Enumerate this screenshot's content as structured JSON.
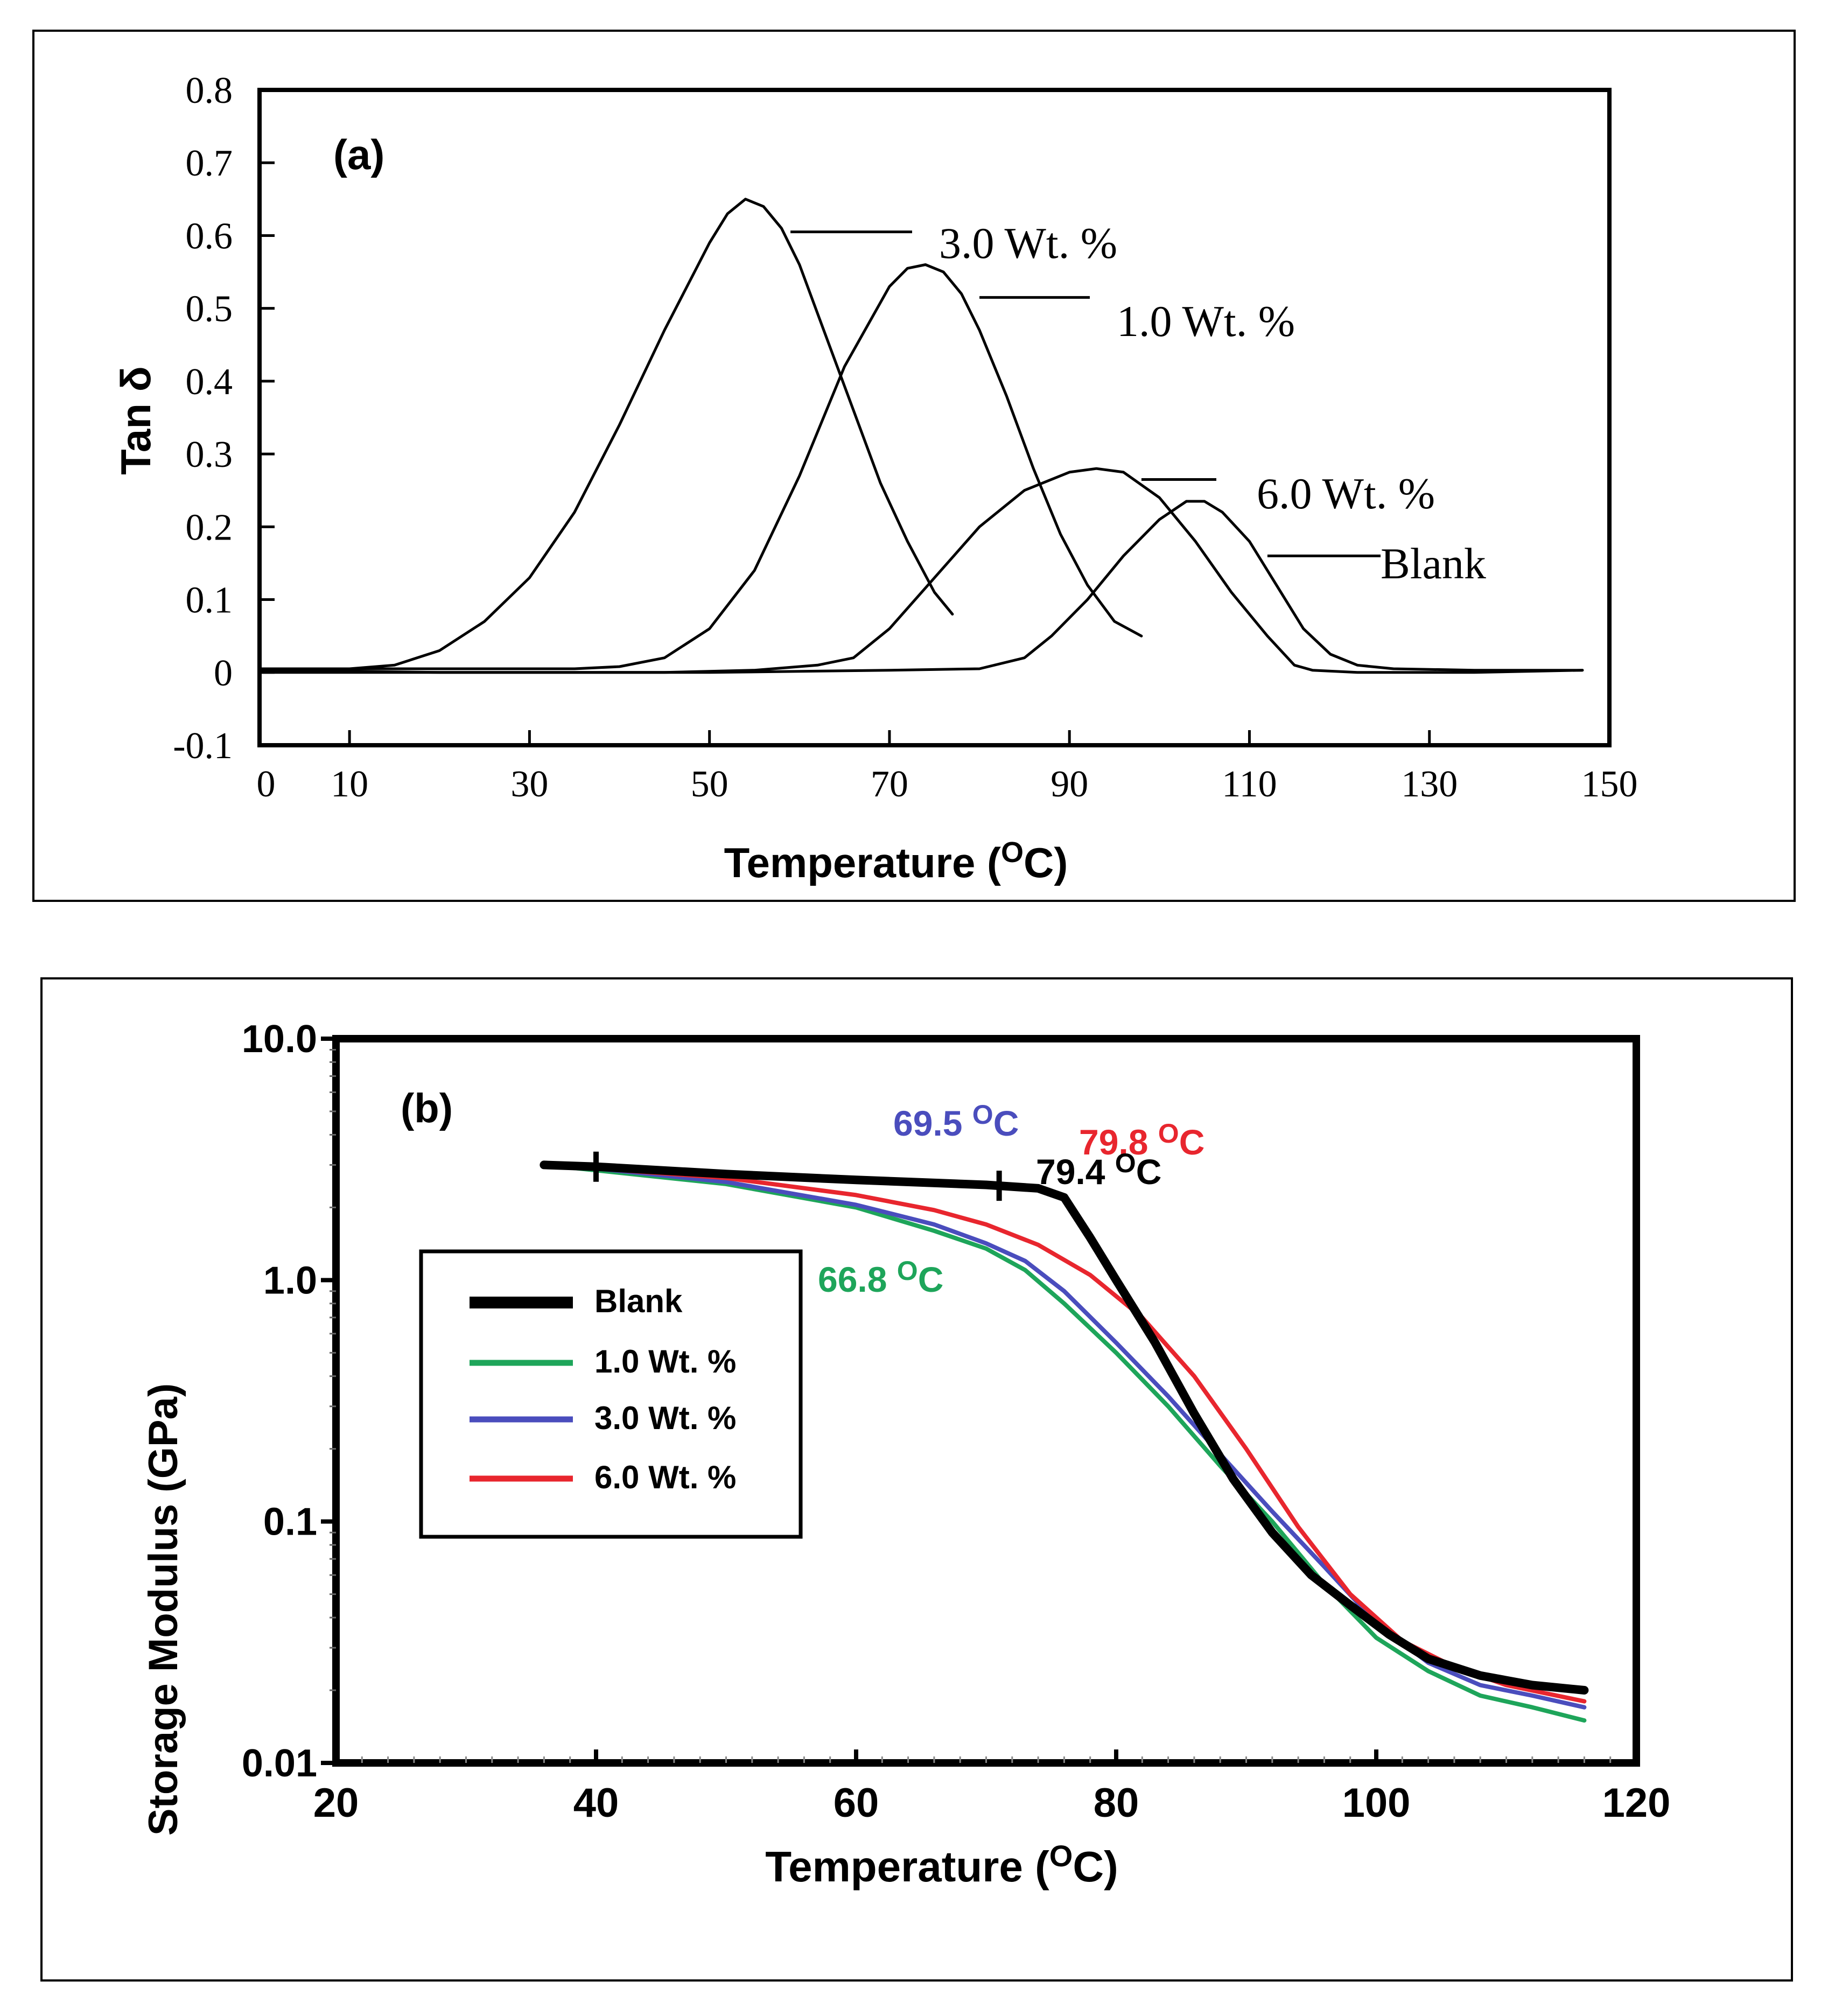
{
  "chart_data": [
    {
      "type": "line",
      "panel_label": "(a)",
      "title": "",
      "xlabel": "Temperature",
      "xunit": "C",
      "xunit_super": "O",
      "ylabel": "Tan δ",
      "xlim": [
        0,
        150
      ],
      "ylim": [
        -0.1,
        0.8
      ],
      "xticks": [
        0,
        10,
        30,
        50,
        70,
        90,
        110,
        130,
        150
      ],
      "xtick_labels": [
        "0",
        "10",
        "30",
        "50",
        "70",
        "90",
        "110",
        "130",
        "150"
      ],
      "yticks": [
        -0.1,
        0,
        0.1,
        0.2,
        0.3,
        0.4,
        0.5,
        0.6,
        0.7,
        0.8
      ],
      "ytick_labels": [
        "-0.1",
        "0",
        "0.1",
        "0.2",
        "0.3",
        "0.4",
        "0.5",
        "0.6",
        "0.7",
        "0.8"
      ],
      "grid": false,
      "series": [
        {
          "name": "3.0 Wt. %",
          "color": "#000000",
          "points": [
            [
              0,
              0.005
            ],
            [
              10,
              0.005
            ],
            [
              15,
              0.01
            ],
            [
              20,
              0.03
            ],
            [
              25,
              0.07
            ],
            [
              30,
              0.13
            ],
            [
              35,
              0.22
            ],
            [
              40,
              0.34
            ],
            [
              45,
              0.47
            ],
            [
              50,
              0.59
            ],
            [
              52,
              0.63
            ],
            [
              54,
              0.65
            ],
            [
              56,
              0.64
            ],
            [
              58,
              0.61
            ],
            [
              60,
              0.56
            ],
            [
              63,
              0.46
            ],
            [
              66,
              0.36
            ],
            [
              69,
              0.26
            ],
            [
              72,
              0.18
            ],
            [
              75,
              0.11
            ],
            [
              77,
              0.08
            ]
          ]
        },
        {
          "name": "1.0 Wt. %",
          "color": "#000000",
          "points": [
            [
              10,
              0.005
            ],
            [
              35,
              0.005
            ],
            [
              40,
              0.008
            ],
            [
              45,
              0.02
            ],
            [
              50,
              0.06
            ],
            [
              55,
              0.14
            ],
            [
              60,
              0.27
            ],
            [
              65,
              0.42
            ],
            [
              70,
              0.53
            ],
            [
              72,
              0.555
            ],
            [
              74,
              0.56
            ],
            [
              76,
              0.55
            ],
            [
              78,
              0.52
            ],
            [
              80,
              0.47
            ],
            [
              83,
              0.38
            ],
            [
              86,
              0.28
            ],
            [
              89,
              0.19
            ],
            [
              92,
              0.12
            ],
            [
              95,
              0.07
            ],
            [
              98,
              0.05
            ]
          ]
        },
        {
          "name": "6.0 Wt. %",
          "color": "#000000",
          "points": [
            [
              0,
              0.0
            ],
            [
              45,
              0.0
            ],
            [
              55,
              0.003
            ],
            [
              62,
              0.01
            ],
            [
              66,
              0.02
            ],
            [
              70,
              0.06
            ],
            [
              75,
              0.13
            ],
            [
              80,
              0.2
            ],
            [
              85,
              0.25
            ],
            [
              90,
              0.275
            ],
            [
              93,
              0.28
            ],
            [
              96,
              0.275
            ],
            [
              100,
              0.24
            ],
            [
              104,
              0.18
            ],
            [
              108,
              0.11
            ],
            [
              112,
              0.05
            ],
            [
              115,
              0.01
            ],
            [
              117,
              0.003
            ],
            [
              122,
              0.0
            ],
            [
              135,
              0.0
            ],
            [
              147,
              0.003
            ]
          ]
        },
        {
          "name": "Blank",
          "color": "#000000",
          "points": [
            [
              0,
              0.003
            ],
            [
              20,
              0.0
            ],
            [
              50,
              0.0
            ],
            [
              70,
              0.003
            ],
            [
              80,
              0.005
            ],
            [
              85,
              0.02
            ],
            [
              88,
              0.05
            ],
            [
              92,
              0.1
            ],
            [
              96,
              0.16
            ],
            [
              100,
              0.21
            ],
            [
              103,
              0.235
            ],
            [
              105,
              0.235
            ],
            [
              107,
              0.22
            ],
            [
              110,
              0.18
            ],
            [
              113,
              0.12
            ],
            [
              116,
              0.06
            ],
            [
              119,
              0.025
            ],
            [
              122,
              0.01
            ],
            [
              126,
              0.005
            ],
            [
              135,
              0.003
            ],
            [
              147,
              0.003
            ]
          ]
        }
      ],
      "annotations": [
        "3.0 Wt. %",
        "1.0 Wt. %",
        "6.0  Wt. %",
        "Blank"
      ]
    },
    {
      "type": "line",
      "panel_label": "(b)",
      "title": "",
      "xlabel": "Temperature",
      "xunit": "C",
      "xunit_super": "O",
      "ylabel": "Storage Modulus (GPa)",
      "yscale": "log",
      "xlim": [
        20,
        120
      ],
      "ylim": [
        0.01,
        10
      ],
      "xticks": [
        20,
        40,
        60,
        80,
        100,
        120
      ],
      "xtick_labels": [
        "20",
        "40",
        "60",
        "80",
        "100",
        "120"
      ],
      "yticks": [
        0.01,
        0.1,
        1,
        10
      ],
      "ytick_labels": [
        "0.01",
        "0.1",
        "1.0",
        "10.0"
      ],
      "grid": false,
      "legend": {
        "position": "center-left",
        "entries": [
          "Blank",
          "1.0 Wt. %",
          "3.0 Wt. %",
          "6.0 Wt. %"
        ]
      },
      "series": [
        {
          "name": "Blank",
          "color": "#000000",
          "points": [
            [
              36,
              3.0
            ],
            [
              40,
              2.95
            ],
            [
              50,
              2.75
            ],
            [
              60,
              2.6
            ],
            [
              70,
              2.48
            ],
            [
              74,
              2.4
            ],
            [
              76,
              2.2
            ],
            [
              78,
              1.5
            ],
            [
              80,
              1.0
            ],
            [
              83,
              0.55
            ],
            [
              86,
              0.28
            ],
            [
              89,
              0.15
            ],
            [
              92,
              0.09
            ],
            [
              95,
              0.06
            ],
            [
              98,
              0.045
            ],
            [
              101,
              0.034
            ],
            [
              104,
              0.027
            ],
            [
              108,
              0.023
            ],
            [
              112,
              0.021
            ],
            [
              116,
              0.02
            ]
          ]
        },
        {
          "name": "1.0 Wt. %",
          "color": "#1ea55a",
          "points": [
            [
              36,
              3.0
            ],
            [
              40,
              2.85
            ],
            [
              50,
              2.5
            ],
            [
              60,
              2.0
            ],
            [
              66,
              1.6
            ],
            [
              70,
              1.35
            ],
            [
              73,
              1.1
            ],
            [
              76,
              0.8
            ],
            [
              80,
              0.5
            ],
            [
              84,
              0.3
            ],
            [
              88,
              0.17
            ],
            [
              92,
              0.1
            ],
            [
              96,
              0.055
            ],
            [
              100,
              0.033
            ],
            [
              104,
              0.024
            ],
            [
              108,
              0.019
            ],
            [
              112,
              0.017
            ],
            [
              116,
              0.015
            ]
          ]
        },
        {
          "name": "3.0 Wt. %",
          "color": "#4a4dbd",
          "points": [
            [
              36,
              3.0
            ],
            [
              40,
              2.9
            ],
            [
              50,
              2.55
            ],
            [
              60,
              2.05
            ],
            [
              66,
              1.7
            ],
            [
              70,
              1.42
            ],
            [
              73,
              1.2
            ],
            [
              76,
              0.9
            ],
            [
              80,
              0.55
            ],
            [
              84,
              0.33
            ],
            [
              88,
              0.19
            ],
            [
              92,
              0.11
            ],
            [
              96,
              0.065
            ],
            [
              100,
              0.038
            ],
            [
              104,
              0.026
            ],
            [
              108,
              0.021
            ],
            [
              112,
              0.019
            ],
            [
              116,
              0.017
            ]
          ]
        },
        {
          "name": "6.0 Wt. %",
          "color": "#e8262e",
          "points": [
            [
              36,
              3.0
            ],
            [
              40,
              2.9
            ],
            [
              50,
              2.65
            ],
            [
              60,
              2.25
            ],
            [
              66,
              1.95
            ],
            [
              70,
              1.7
            ],
            [
              74,
              1.4
            ],
            [
              78,
              1.05
            ],
            [
              82,
              0.7
            ],
            [
              86,
              0.4
            ],
            [
              90,
              0.2
            ],
            [
              94,
              0.095
            ],
            [
              98,
              0.05
            ],
            [
              102,
              0.032
            ],
            [
              106,
              0.025
            ],
            [
              110,
              0.021
            ],
            [
              116,
              0.018
            ]
          ]
        }
      ],
      "annotations": [
        {
          "text": "69.5",
          "unit": "C",
          "super": "O",
          "color": "#4a4dbd"
        },
        {
          "text": "79.8",
          "unit": "C",
          "super": "O",
          "color": "#e8262e"
        },
        {
          "text": "79.4",
          "unit": "C",
          "super": "O",
          "color": "#000000"
        },
        {
          "text": "66.8",
          "unit": "C",
          "super": "O",
          "color": "#1ea55a"
        }
      ],
      "markers": [
        {
          "x": 40,
          "series": "Blank"
        },
        {
          "x": 71,
          "series": "Blank"
        }
      ]
    }
  ]
}
